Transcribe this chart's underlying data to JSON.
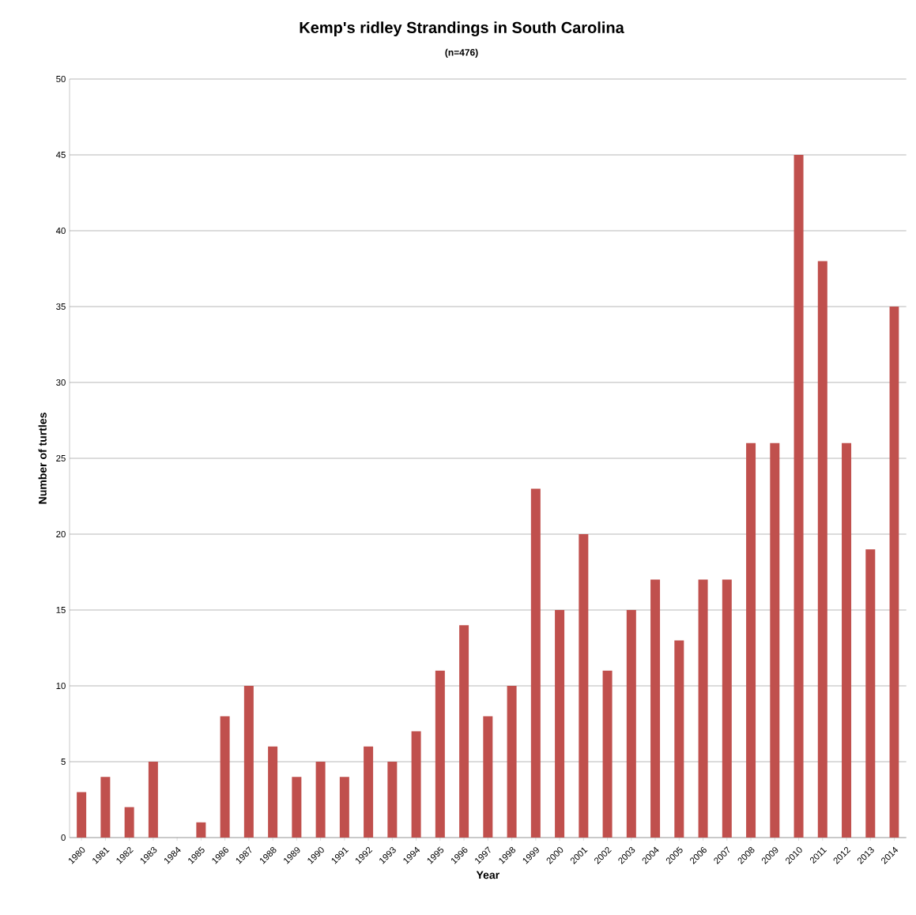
{
  "chart_data": {
    "type": "bar",
    "title": "Kemp's ridley Strandings in South Carolina",
    "subtitle": "(n=476)",
    "xlabel": "Year",
    "ylabel": "Number of turtles",
    "categories": [
      "1980",
      "1981",
      "1982",
      "1983",
      "1984",
      "1985",
      "1986",
      "1987",
      "1988",
      "1989",
      "1990",
      "1991",
      "1992",
      "1993",
      "1994",
      "1995",
      "1996",
      "1997",
      "1998",
      "1999",
      "2000",
      "2001",
      "2002",
      "2003",
      "2004",
      "2005",
      "2006",
      "2007",
      "2008",
      "2009",
      "2010",
      "2011",
      "2012",
      "2013",
      "2014"
    ],
    "values": [
      3,
      4,
      2,
      5,
      0,
      1,
      8,
      10,
      6,
      4,
      5,
      4,
      6,
      5,
      7,
      11,
      14,
      8,
      10,
      23,
      15,
      20,
      11,
      15,
      17,
      13,
      17,
      17,
      26,
      26,
      45,
      38,
      26,
      19,
      35
    ],
    "color": "#c0504d",
    "ylim": [
      0,
      50
    ],
    "yticks": [
      0,
      5,
      10,
      15,
      20,
      25,
      30,
      35,
      40,
      45,
      50
    ],
    "grid": "y"
  }
}
